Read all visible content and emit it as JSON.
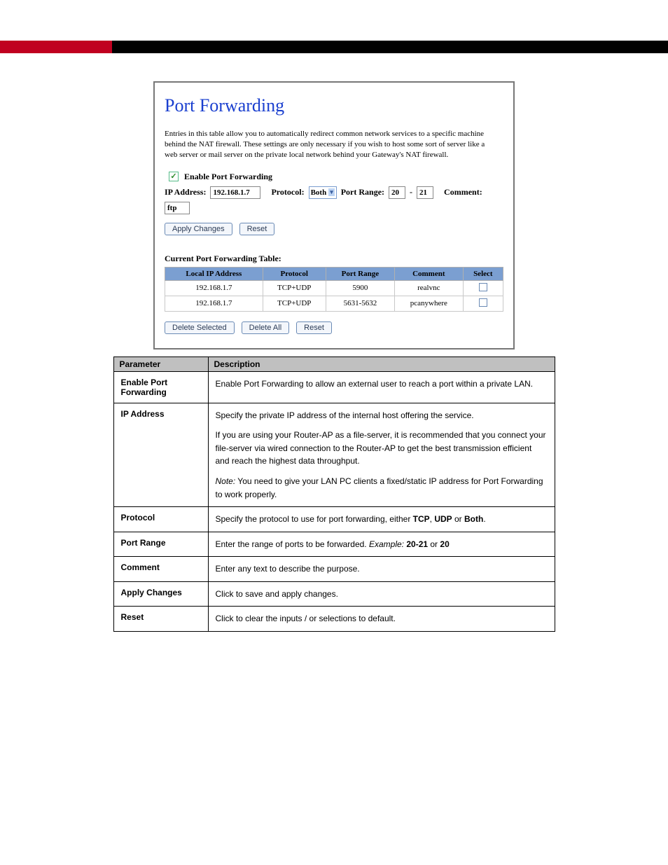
{
  "colors": {
    "top_bar_black": "#000000",
    "top_bar_red": "#c00020",
    "heading_blue": "#1a3fcf",
    "table_header_blue": "#7b9fd1",
    "param_header_gray": "#c0c0c0",
    "button_border": "#6a8ab5",
    "button_bg": "#f3f6fb",
    "border_gray": "#777777"
  },
  "capture": {
    "title": "Port Forwarding",
    "description": "Entries in this table allow you to automatically redirect common network services to a specific machine behind the NAT firewall. These settings are only necessary if you wish to host some sort of server like a web server or mail server on the private local network behind your Gateway's NAT firewall.",
    "enable_label": "Enable Port Forwarding",
    "enable_checked": true,
    "form": {
      "ip_label": "IP Address:",
      "ip_value": "192.168.1.7",
      "protocol_label": "Protocol:",
      "protocol_value": "Both",
      "port_range_label": "Port Range:",
      "port_from": "20",
      "port_sep": "-",
      "port_to": "21",
      "comment_label": "Comment:",
      "comment_value": "ftp"
    },
    "buttons": {
      "apply": "Apply Changes",
      "reset": "Reset",
      "delete_selected": "Delete Selected",
      "delete_all": "Delete All",
      "reset2": "Reset"
    },
    "table_label": "Current Port Forwarding Table:",
    "columns": [
      "Local IP Address",
      "Protocol",
      "Port Range",
      "Comment",
      "Select"
    ],
    "rows": [
      {
        "ip": "192.168.1.7",
        "protocol": "TCP+UDP",
        "range": "5900",
        "comment": "realvnc"
      },
      {
        "ip": "192.168.1.7",
        "protocol": "TCP+UDP",
        "range": "5631-5632",
        "comment": "pcanywhere"
      }
    ]
  },
  "params": {
    "headers": {
      "param": "Parameter",
      "desc": "Description"
    },
    "items": [
      {
        "label_html": "<b>Enable Port Forwarding</b>",
        "desc_html": "<p>Enable Port Forwarding to allow an external user to reach a port within a private LAN.</p>"
      },
      {
        "label_html": "<b>IP Address</b>",
        "desc_html": "<p>Specify the private IP address of the internal host offering the service.</p><p>If you are using your Router-AP as a file-server, it is recommended that you connect your file-server via wired connection to the Router-AP to get the best transmission efficient and reach the highest data throughput.</p><p><span class=\"ital\">Note:</span> You need to give your LAN PC clients a fixed/static IP address for Port Forwarding to work properly.</p>"
      },
      {
        "label_html": "<b>Protocol</b>",
        "desc_html": "<p>Specify the protocol to use for port forwarding, either <b>TCP</b>, <b>UDP</b> or <b>Both</b>.</p>"
      },
      {
        "label_html": "<b>Port Range</b>",
        "desc_html": "<p>Enter the range of ports to be forwarded. <span class=\"ital\">Example:</span> <b>20-21</b> or <b>20</b></p>"
      },
      {
        "label_html": "<b>Comment</b>",
        "desc_html": "<p>Enter any text to describe the purpose.</p>"
      },
      {
        "label_html": "<b>Apply Changes</b>",
        "desc_html": "<p>Click to save and apply changes.</p>"
      },
      {
        "label_html": "<b>Reset</b>",
        "desc_html": "<p>Click to clear the inputs / or selections to default.</p>"
      }
    ]
  }
}
